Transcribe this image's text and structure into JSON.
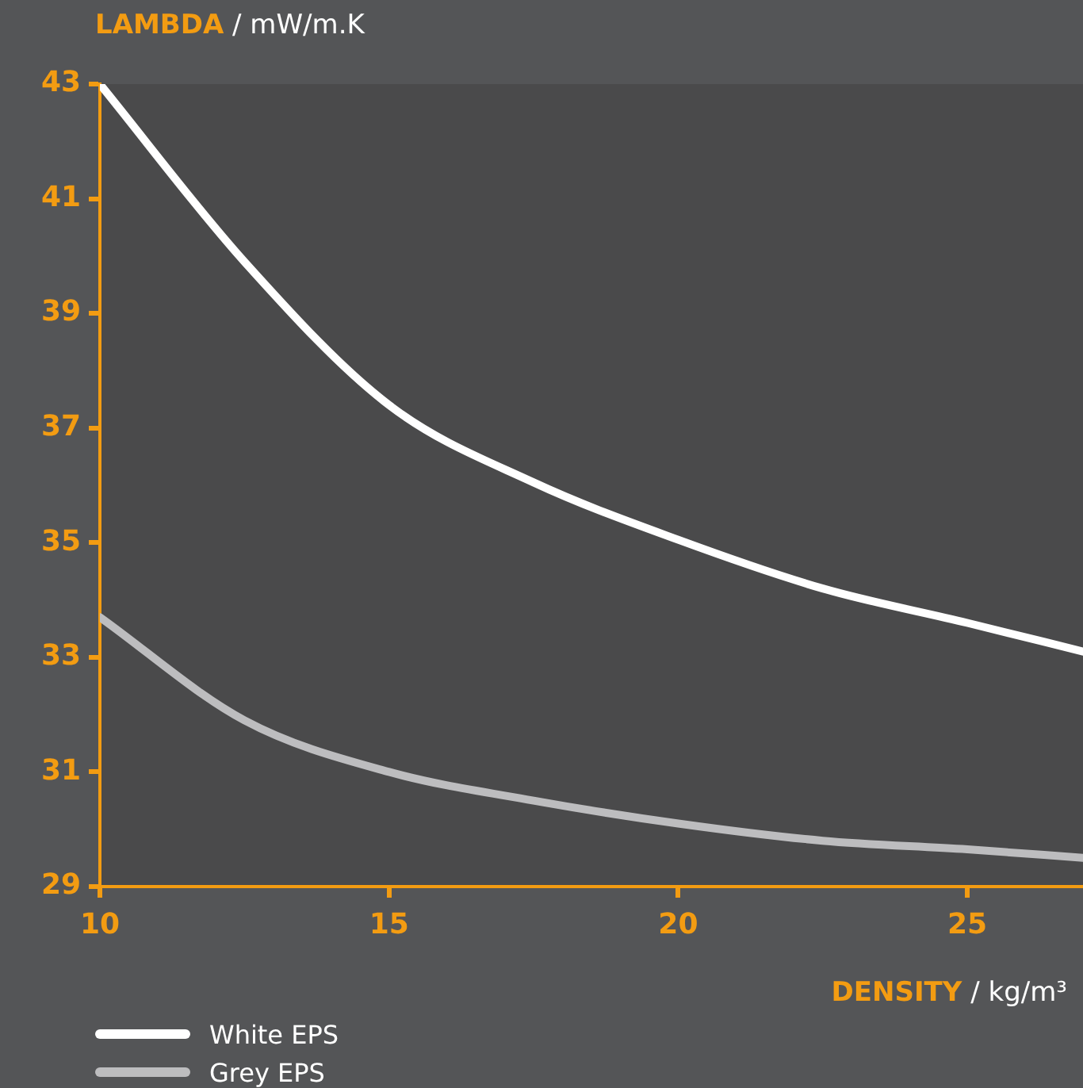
{
  "chart_data": {
    "type": "line",
    "ylabel": "LAMBDA / mW/m.K",
    "xlabel": "DENSITY / kg/m³",
    "xlim": [
      10,
      27
    ],
    "xticks": [
      10,
      15,
      20,
      25
    ],
    "ylim": [
      29,
      43
    ],
    "yticks": [
      29,
      31,
      33,
      35,
      37,
      39,
      41,
      43
    ],
    "grid": false,
    "legend": "bottom left",
    "series": [
      {
        "name": "White EPS",
        "color": "#ffffff",
        "x": [
          10,
          12.5,
          15,
          17.5,
          20,
          22.5,
          25,
          27
        ],
        "values": [
          43,
          39.9,
          37.4,
          36.05,
          35.05,
          34.2,
          33.6,
          33.1
        ]
      },
      {
        "name": "Grey EPS",
        "color": "#bdbdbf",
        "x": [
          10,
          12.5,
          15,
          17.5,
          20,
          22.5,
          25,
          27
        ],
        "values": [
          33.7,
          31.9,
          31.0,
          30.5,
          30.1,
          29.8,
          29.65,
          29.5
        ]
      }
    ]
  }
}
